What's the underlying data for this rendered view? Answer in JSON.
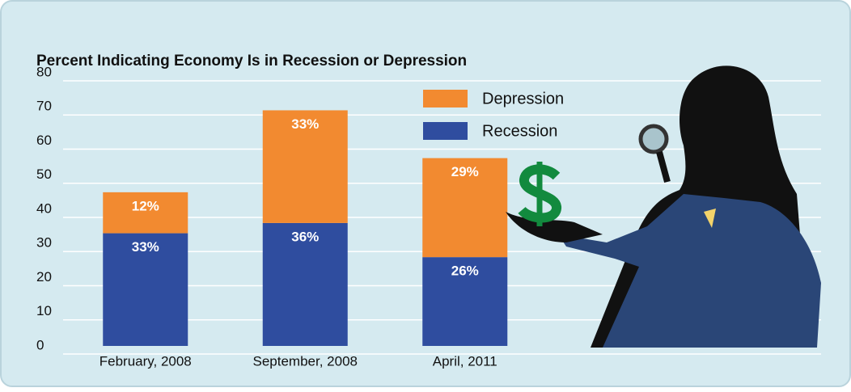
{
  "chart_data": {
    "type": "stacked_bar",
    "title": "Percent Indicating Economy Is in Recession or Depression",
    "categories": [
      "February, 2008",
      "September, 2008",
      "April, 2011"
    ],
    "series": [
      {
        "name": "Recession",
        "color": "#2f4d9f",
        "values": [
          33,
          36,
          26
        ],
        "value_labels": [
          "33%",
          "36%",
          "26%"
        ]
      },
      {
        "name": "Depression",
        "color": "#f28a30",
        "values": [
          12,
          33,
          29
        ],
        "value_labels": [
          "12%",
          "33%",
          "29%"
        ]
      }
    ],
    "ylim": [
      0,
      80
    ],
    "yticks": [
      0,
      10,
      20,
      30,
      40,
      50,
      60,
      70,
      80
    ],
    "grid": true,
    "legend": "top-right"
  }
}
